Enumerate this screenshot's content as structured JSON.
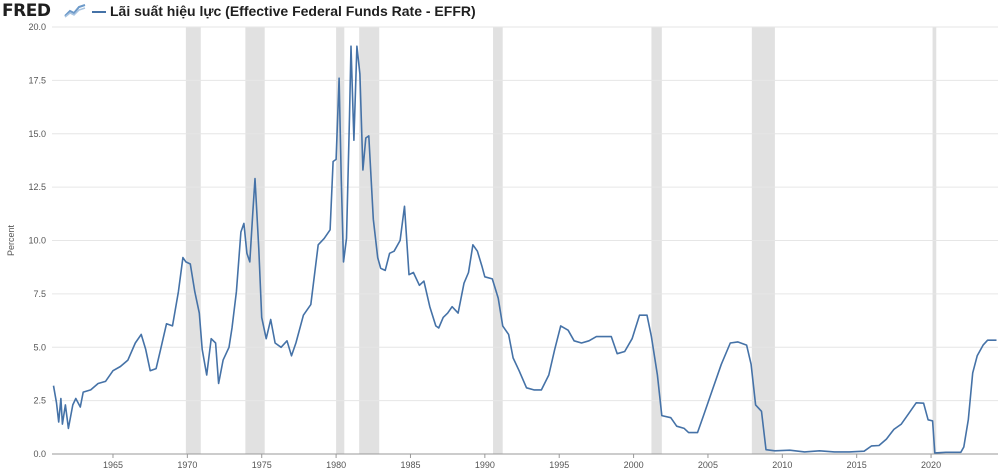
{
  "header": {
    "logo_text": "FRED",
    "logo_mark_icon": "line-chart-icon"
  },
  "colors": {
    "series": "#4572a7",
    "recession": "#e1e1e1",
    "grid": "#e6e6e6",
    "axis": "#999999",
    "text": "#555555"
  },
  "chart_data": {
    "type": "line",
    "title": "",
    "xlabel": "",
    "ylabel": "Percent",
    "xlim": [
      1960.9,
      2024.5
    ],
    "ylim": [
      0,
      20
    ],
    "grid": "horizontal",
    "legend": "top-left",
    "x_ticks": [
      "1965",
      "1970",
      "1975",
      "1980",
      "1985",
      "1990",
      "1995",
      "2000",
      "2005",
      "2010",
      "2015",
      "2020"
    ],
    "y_ticks": [
      "0.0",
      "2.5",
      "5.0",
      "7.5",
      "10.0",
      "12.5",
      "15.0",
      "17.5",
      "20.0"
    ],
    "recessions": [
      [
        1969.9,
        1970.9
      ],
      [
        1973.9,
        1975.2
      ],
      [
        1980.0,
        1980.55
      ],
      [
        1981.55,
        1982.9
      ],
      [
        1990.55,
        1991.2
      ],
      [
        2001.2,
        2001.9
      ],
      [
        2007.95,
        2009.5
      ],
      [
        2020.1,
        2020.35
      ]
    ],
    "series": [
      {
        "name": "Lãi suất hiệu lực (Effective Federal Funds Rate - EFFR)",
        "points": [
          [
            1961.0,
            3.2
          ],
          [
            1961.2,
            2.4
          ],
          [
            1961.35,
            1.5
          ],
          [
            1961.5,
            2.6
          ],
          [
            1961.6,
            1.4
          ],
          [
            1961.8,
            2.3
          ],
          [
            1962.0,
            1.2
          ],
          [
            1962.3,
            2.3
          ],
          [
            1962.5,
            2.6
          ],
          [
            1962.8,
            2.2
          ],
          [
            1963.0,
            2.9
          ],
          [
            1963.5,
            3.0
          ],
          [
            1964.0,
            3.3
          ],
          [
            1964.5,
            3.4
          ],
          [
            1965.0,
            3.9
          ],
          [
            1965.5,
            4.1
          ],
          [
            1966.0,
            4.4
          ],
          [
            1966.5,
            5.2
          ],
          [
            1966.9,
            5.6
          ],
          [
            1967.2,
            4.9
          ],
          [
            1967.5,
            3.9
          ],
          [
            1967.9,
            4.0
          ],
          [
            1968.2,
            4.9
          ],
          [
            1968.6,
            6.1
          ],
          [
            1969.0,
            6.0
          ],
          [
            1969.4,
            7.6
          ],
          [
            1969.7,
            9.2
          ],
          [
            1969.9,
            9.0
          ],
          [
            1970.2,
            8.9
          ],
          [
            1970.5,
            7.6
          ],
          [
            1970.8,
            6.6
          ],
          [
            1971.0,
            4.9
          ],
          [
            1971.3,
            3.7
          ],
          [
            1971.6,
            5.4
          ],
          [
            1971.9,
            5.2
          ],
          [
            1972.1,
            3.3
          ],
          [
            1972.4,
            4.4
          ],
          [
            1972.8,
            5.0
          ],
          [
            1973.0,
            5.9
          ],
          [
            1973.3,
            7.6
          ],
          [
            1973.6,
            10.4
          ],
          [
            1973.8,
            10.8
          ],
          [
            1974.0,
            9.4
          ],
          [
            1974.2,
            9.0
          ],
          [
            1974.4,
            11.3
          ],
          [
            1974.55,
            12.9
          ],
          [
            1974.8,
            9.6
          ],
          [
            1975.0,
            6.4
          ],
          [
            1975.3,
            5.4
          ],
          [
            1975.6,
            6.3
          ],
          [
            1975.9,
            5.2
          ],
          [
            1976.3,
            5.0
          ],
          [
            1976.7,
            5.3
          ],
          [
            1977.0,
            4.6
          ],
          [
            1977.3,
            5.2
          ],
          [
            1977.8,
            6.5
          ],
          [
            1978.3,
            7.0
          ],
          [
            1978.8,
            9.8
          ],
          [
            1979.2,
            10.1
          ],
          [
            1979.6,
            10.5
          ],
          [
            1979.8,
            13.7
          ],
          [
            1980.0,
            13.8
          ],
          [
            1980.2,
            17.6
          ],
          [
            1980.35,
            12.8
          ],
          [
            1980.5,
            9.0
          ],
          [
            1980.7,
            10.1
          ],
          [
            1980.9,
            15.8
          ],
          [
            1981.0,
            19.1
          ],
          [
            1981.2,
            14.7
          ],
          [
            1981.4,
            19.1
          ],
          [
            1981.6,
            17.8
          ],
          [
            1981.8,
            13.3
          ],
          [
            1982.0,
            14.8
          ],
          [
            1982.2,
            14.9
          ],
          [
            1982.5,
            11.0
          ],
          [
            1982.8,
            9.2
          ],
          [
            1983.0,
            8.7
          ],
          [
            1983.3,
            8.6
          ],
          [
            1983.6,
            9.4
          ],
          [
            1983.9,
            9.5
          ],
          [
            1984.3,
            10.0
          ],
          [
            1984.6,
            11.6
          ],
          [
            1984.9,
            8.4
          ],
          [
            1985.2,
            8.5
          ],
          [
            1985.6,
            7.9
          ],
          [
            1985.9,
            8.1
          ],
          [
            1986.3,
            6.9
          ],
          [
            1986.7,
            6.0
          ],
          [
            1986.9,
            5.9
          ],
          [
            1987.2,
            6.4
          ],
          [
            1987.5,
            6.6
          ],
          [
            1987.8,
            6.9
          ],
          [
            1988.2,
            6.6
          ],
          [
            1988.6,
            8.0
          ],
          [
            1988.9,
            8.5
          ],
          [
            1989.2,
            9.8
          ],
          [
            1989.5,
            9.5
          ],
          [
            1989.8,
            8.8
          ],
          [
            1990.0,
            8.3
          ],
          [
            1990.5,
            8.2
          ],
          [
            1990.9,
            7.3
          ],
          [
            1991.2,
            6.0
          ],
          [
            1991.6,
            5.6
          ],
          [
            1991.9,
            4.5
          ],
          [
            1992.3,
            3.9
          ],
          [
            1992.8,
            3.1
          ],
          [
            1993.3,
            3.0
          ],
          [
            1993.8,
            3.0
          ],
          [
            1994.3,
            3.7
          ],
          [
            1994.7,
            4.9
          ],
          [
            1995.1,
            6.0
          ],
          [
            1995.6,
            5.8
          ],
          [
            1996.0,
            5.3
          ],
          [
            1996.5,
            5.2
          ],
          [
            1997.0,
            5.3
          ],
          [
            1997.5,
            5.5
          ],
          [
            1998.0,
            5.5
          ],
          [
            1998.5,
            5.5
          ],
          [
            1998.9,
            4.7
          ],
          [
            1999.4,
            4.8
          ],
          [
            1999.9,
            5.4
          ],
          [
            2000.4,
            6.5
          ],
          [
            2000.9,
            6.5
          ],
          [
            2001.2,
            5.5
          ],
          [
            2001.6,
            3.7
          ],
          [
            2001.9,
            1.8
          ],
          [
            2002.5,
            1.7
          ],
          [
            2002.9,
            1.3
          ],
          [
            2003.4,
            1.2
          ],
          [
            2003.7,
            1.0
          ],
          [
            2004.3,
            1.0
          ],
          [
            2004.7,
            1.8
          ],
          [
            2005.3,
            3.0
          ],
          [
            2005.9,
            4.2
          ],
          [
            2006.5,
            5.2
          ],
          [
            2007.0,
            5.25
          ],
          [
            2007.6,
            5.1
          ],
          [
            2007.9,
            4.2
          ],
          [
            2008.2,
            2.3
          ],
          [
            2008.6,
            2.0
          ],
          [
            2008.9,
            0.2
          ],
          [
            2009.5,
            0.15
          ],
          [
            2010.5,
            0.18
          ],
          [
            2011.5,
            0.1
          ],
          [
            2012.5,
            0.15
          ],
          [
            2013.5,
            0.1
          ],
          [
            2014.5,
            0.1
          ],
          [
            2015.5,
            0.13
          ],
          [
            2016.0,
            0.38
          ],
          [
            2016.5,
            0.4
          ],
          [
            2017.0,
            0.7
          ],
          [
            2017.5,
            1.15
          ],
          [
            2018.0,
            1.4
          ],
          [
            2018.5,
            1.9
          ],
          [
            2019.0,
            2.4
          ],
          [
            2019.5,
            2.38
          ],
          [
            2019.8,
            1.6
          ],
          [
            2020.1,
            1.55
          ],
          [
            2020.25,
            0.05
          ],
          [
            2021.0,
            0.08
          ],
          [
            2022.0,
            0.08
          ],
          [
            2022.2,
            0.33
          ],
          [
            2022.5,
            1.6
          ],
          [
            2022.8,
            3.8
          ],
          [
            2023.1,
            4.6
          ],
          [
            2023.5,
            5.1
          ],
          [
            2023.8,
            5.33
          ],
          [
            2024.4,
            5.33
          ]
        ]
      }
    ]
  }
}
